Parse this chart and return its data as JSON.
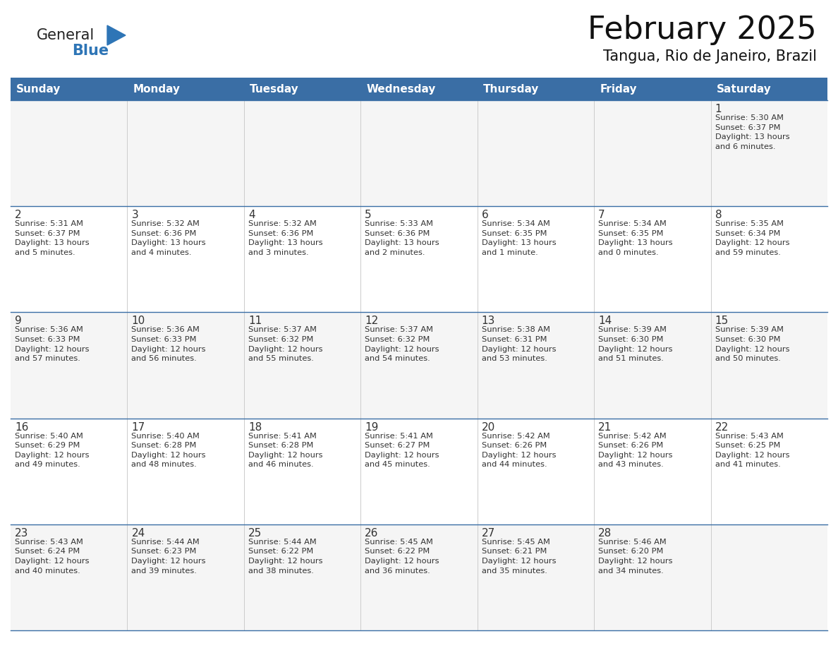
{
  "title": "February 2025",
  "subtitle": "Tangua, Rio de Janeiro, Brazil",
  "header_bg": "#3A6EA5",
  "header_text_color": "#FFFFFF",
  "cell_bg": "#FFFFFF",
  "cell_bg_alt": "#F5F5F5",
  "day_number_color": "#333333",
  "text_color": "#333333",
  "line_color": "#3A6EA5",
  "vert_line_color": "#CCCCCC",
  "days_of_week": [
    "Sunday",
    "Monday",
    "Tuesday",
    "Wednesday",
    "Thursday",
    "Friday",
    "Saturday"
  ],
  "weeks": [
    [
      {
        "day": "",
        "info": ""
      },
      {
        "day": "",
        "info": ""
      },
      {
        "day": "",
        "info": ""
      },
      {
        "day": "",
        "info": ""
      },
      {
        "day": "",
        "info": ""
      },
      {
        "day": "",
        "info": ""
      },
      {
        "day": "1",
        "info": "Sunrise: 5:30 AM\nSunset: 6:37 PM\nDaylight: 13 hours\nand 6 minutes."
      }
    ],
    [
      {
        "day": "2",
        "info": "Sunrise: 5:31 AM\nSunset: 6:37 PM\nDaylight: 13 hours\nand 5 minutes."
      },
      {
        "day": "3",
        "info": "Sunrise: 5:32 AM\nSunset: 6:36 PM\nDaylight: 13 hours\nand 4 minutes."
      },
      {
        "day": "4",
        "info": "Sunrise: 5:32 AM\nSunset: 6:36 PM\nDaylight: 13 hours\nand 3 minutes."
      },
      {
        "day": "5",
        "info": "Sunrise: 5:33 AM\nSunset: 6:36 PM\nDaylight: 13 hours\nand 2 minutes."
      },
      {
        "day": "6",
        "info": "Sunrise: 5:34 AM\nSunset: 6:35 PM\nDaylight: 13 hours\nand 1 minute."
      },
      {
        "day": "7",
        "info": "Sunrise: 5:34 AM\nSunset: 6:35 PM\nDaylight: 13 hours\nand 0 minutes."
      },
      {
        "day": "8",
        "info": "Sunrise: 5:35 AM\nSunset: 6:34 PM\nDaylight: 12 hours\nand 59 minutes."
      }
    ],
    [
      {
        "day": "9",
        "info": "Sunrise: 5:36 AM\nSunset: 6:33 PM\nDaylight: 12 hours\nand 57 minutes."
      },
      {
        "day": "10",
        "info": "Sunrise: 5:36 AM\nSunset: 6:33 PM\nDaylight: 12 hours\nand 56 minutes."
      },
      {
        "day": "11",
        "info": "Sunrise: 5:37 AM\nSunset: 6:32 PM\nDaylight: 12 hours\nand 55 minutes."
      },
      {
        "day": "12",
        "info": "Sunrise: 5:37 AM\nSunset: 6:32 PM\nDaylight: 12 hours\nand 54 minutes."
      },
      {
        "day": "13",
        "info": "Sunrise: 5:38 AM\nSunset: 6:31 PM\nDaylight: 12 hours\nand 53 minutes."
      },
      {
        "day": "14",
        "info": "Sunrise: 5:39 AM\nSunset: 6:30 PM\nDaylight: 12 hours\nand 51 minutes."
      },
      {
        "day": "15",
        "info": "Sunrise: 5:39 AM\nSunset: 6:30 PM\nDaylight: 12 hours\nand 50 minutes."
      }
    ],
    [
      {
        "day": "16",
        "info": "Sunrise: 5:40 AM\nSunset: 6:29 PM\nDaylight: 12 hours\nand 49 minutes."
      },
      {
        "day": "17",
        "info": "Sunrise: 5:40 AM\nSunset: 6:28 PM\nDaylight: 12 hours\nand 48 minutes."
      },
      {
        "day": "18",
        "info": "Sunrise: 5:41 AM\nSunset: 6:28 PM\nDaylight: 12 hours\nand 46 minutes."
      },
      {
        "day": "19",
        "info": "Sunrise: 5:41 AM\nSunset: 6:27 PM\nDaylight: 12 hours\nand 45 minutes."
      },
      {
        "day": "20",
        "info": "Sunrise: 5:42 AM\nSunset: 6:26 PM\nDaylight: 12 hours\nand 44 minutes."
      },
      {
        "day": "21",
        "info": "Sunrise: 5:42 AM\nSunset: 6:26 PM\nDaylight: 12 hours\nand 43 minutes."
      },
      {
        "day": "22",
        "info": "Sunrise: 5:43 AM\nSunset: 6:25 PM\nDaylight: 12 hours\nand 41 minutes."
      }
    ],
    [
      {
        "day": "23",
        "info": "Sunrise: 5:43 AM\nSunset: 6:24 PM\nDaylight: 12 hours\nand 40 minutes."
      },
      {
        "day": "24",
        "info": "Sunrise: 5:44 AM\nSunset: 6:23 PM\nDaylight: 12 hours\nand 39 minutes."
      },
      {
        "day": "25",
        "info": "Sunrise: 5:44 AM\nSunset: 6:22 PM\nDaylight: 12 hours\nand 38 minutes."
      },
      {
        "day": "26",
        "info": "Sunrise: 5:45 AM\nSunset: 6:22 PM\nDaylight: 12 hours\nand 36 minutes."
      },
      {
        "day": "27",
        "info": "Sunrise: 5:45 AM\nSunset: 6:21 PM\nDaylight: 12 hours\nand 35 minutes."
      },
      {
        "day": "28",
        "info": "Sunrise: 5:46 AM\nSunset: 6:20 PM\nDaylight: 12 hours\nand 34 minutes."
      },
      {
        "day": "",
        "info": ""
      }
    ]
  ],
  "logo_general_color": "#222222",
  "logo_blue_color": "#2E75B6",
  "figsize": [
    11.88,
    9.18
  ],
  "dpi": 100
}
